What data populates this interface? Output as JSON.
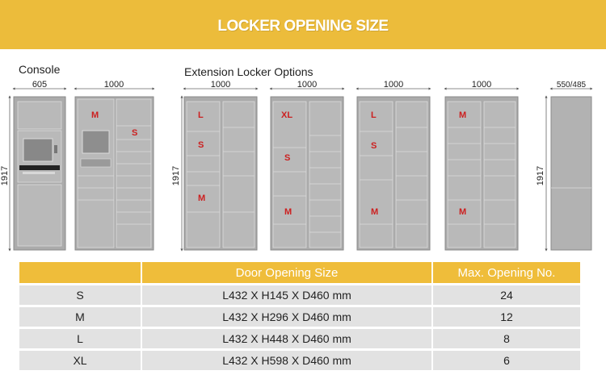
{
  "header": {
    "title": "LOCKER OPENING SIZE"
  },
  "sections": {
    "console_label": "Console",
    "extension_label": "Extension Locker Options"
  },
  "dimensions": {
    "console_width": "605",
    "unit_width": "1000",
    "side_width": "550/485",
    "height": "1917"
  },
  "console_units": [
    {
      "labels": [
        {
          "text": "M"
        },
        {
          "text": "S"
        }
      ]
    }
  ],
  "extension_units": [
    {
      "labels": [
        {
          "text": "L"
        },
        {
          "text": "S"
        },
        {
          "text": "M"
        }
      ]
    },
    {
      "labels": [
        {
          "text": "XL"
        },
        {
          "text": "S"
        },
        {
          "text": "M"
        }
      ]
    },
    {
      "labels": [
        {
          "text": "L"
        },
        {
          "text": "S"
        },
        {
          "text": "M"
        }
      ]
    },
    {
      "labels": [
        {
          "text": "M"
        },
        {
          "text": "M"
        }
      ]
    }
  ],
  "table": {
    "headers": [
      "",
      "Door Opening Size",
      "Max. Opening No."
    ],
    "rows": [
      [
        "S",
        "L432 X H145 X D460 mm",
        "24"
      ],
      [
        "M",
        "L432 X H296 X D460 mm",
        "12"
      ],
      [
        "L",
        "L432 X H448 X D460 mm",
        "8"
      ],
      [
        "XL",
        "L432 X H598 X D460 mm",
        "6"
      ]
    ]
  },
  "colors": {
    "banner": "#ecbc3b",
    "header_cell": "#efbd3a",
    "row_cell": "#e2e2e2",
    "door_label": "#cc1f1f",
    "cabinet": "#a9a9a9"
  }
}
